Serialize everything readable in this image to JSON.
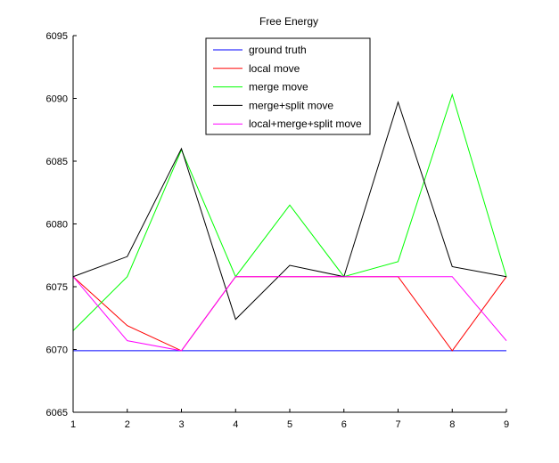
{
  "chart_data": {
    "type": "line",
    "title": "Free Energy",
    "xlabel": "",
    "ylabel": "",
    "x": [
      1,
      2,
      3,
      4,
      5,
      6,
      7,
      8,
      9
    ],
    "xlim": [
      1,
      9
    ],
    "ylim": [
      6065,
      6095
    ],
    "xticks": [
      1,
      2,
      3,
      4,
      5,
      6,
      7,
      8,
      9
    ],
    "yticks": [
      6065,
      6070,
      6075,
      6080,
      6085,
      6090,
      6095
    ],
    "grid": false,
    "legend_position": "top-center",
    "series": [
      {
        "name": "ground truth",
        "color": "#0000ff",
        "values": [
          6069.9,
          6069.9,
          6069.9,
          6069.9,
          6069.9,
          6069.9,
          6069.9,
          6069.9,
          6069.9
        ]
      },
      {
        "name": "local move",
        "color": "#ff0000",
        "values": [
          6075.8,
          6071.9,
          6069.9,
          6075.8,
          6075.8,
          6075.8,
          6075.8,
          6069.9,
          6075.8
        ]
      },
      {
        "name": "merge move",
        "color": "#00ff00",
        "values": [
          6071.5,
          6075.8,
          6085.9,
          6075.8,
          6081.5,
          6075.8,
          6077.0,
          6090.3,
          6075.8
        ]
      },
      {
        "name": "merge+split move",
        "color": "#000000",
        "values": [
          6075.8,
          6077.4,
          6086.0,
          6072.4,
          6076.7,
          6075.8,
          6089.7,
          6076.6,
          6075.8
        ]
      },
      {
        "name": "local+merge+split move",
        "color": "#ff00ff",
        "values": [
          6075.8,
          6070.7,
          6069.9,
          6075.8,
          6075.8,
          6075.8,
          6075.8,
          6075.8,
          6070.7
        ]
      }
    ]
  }
}
